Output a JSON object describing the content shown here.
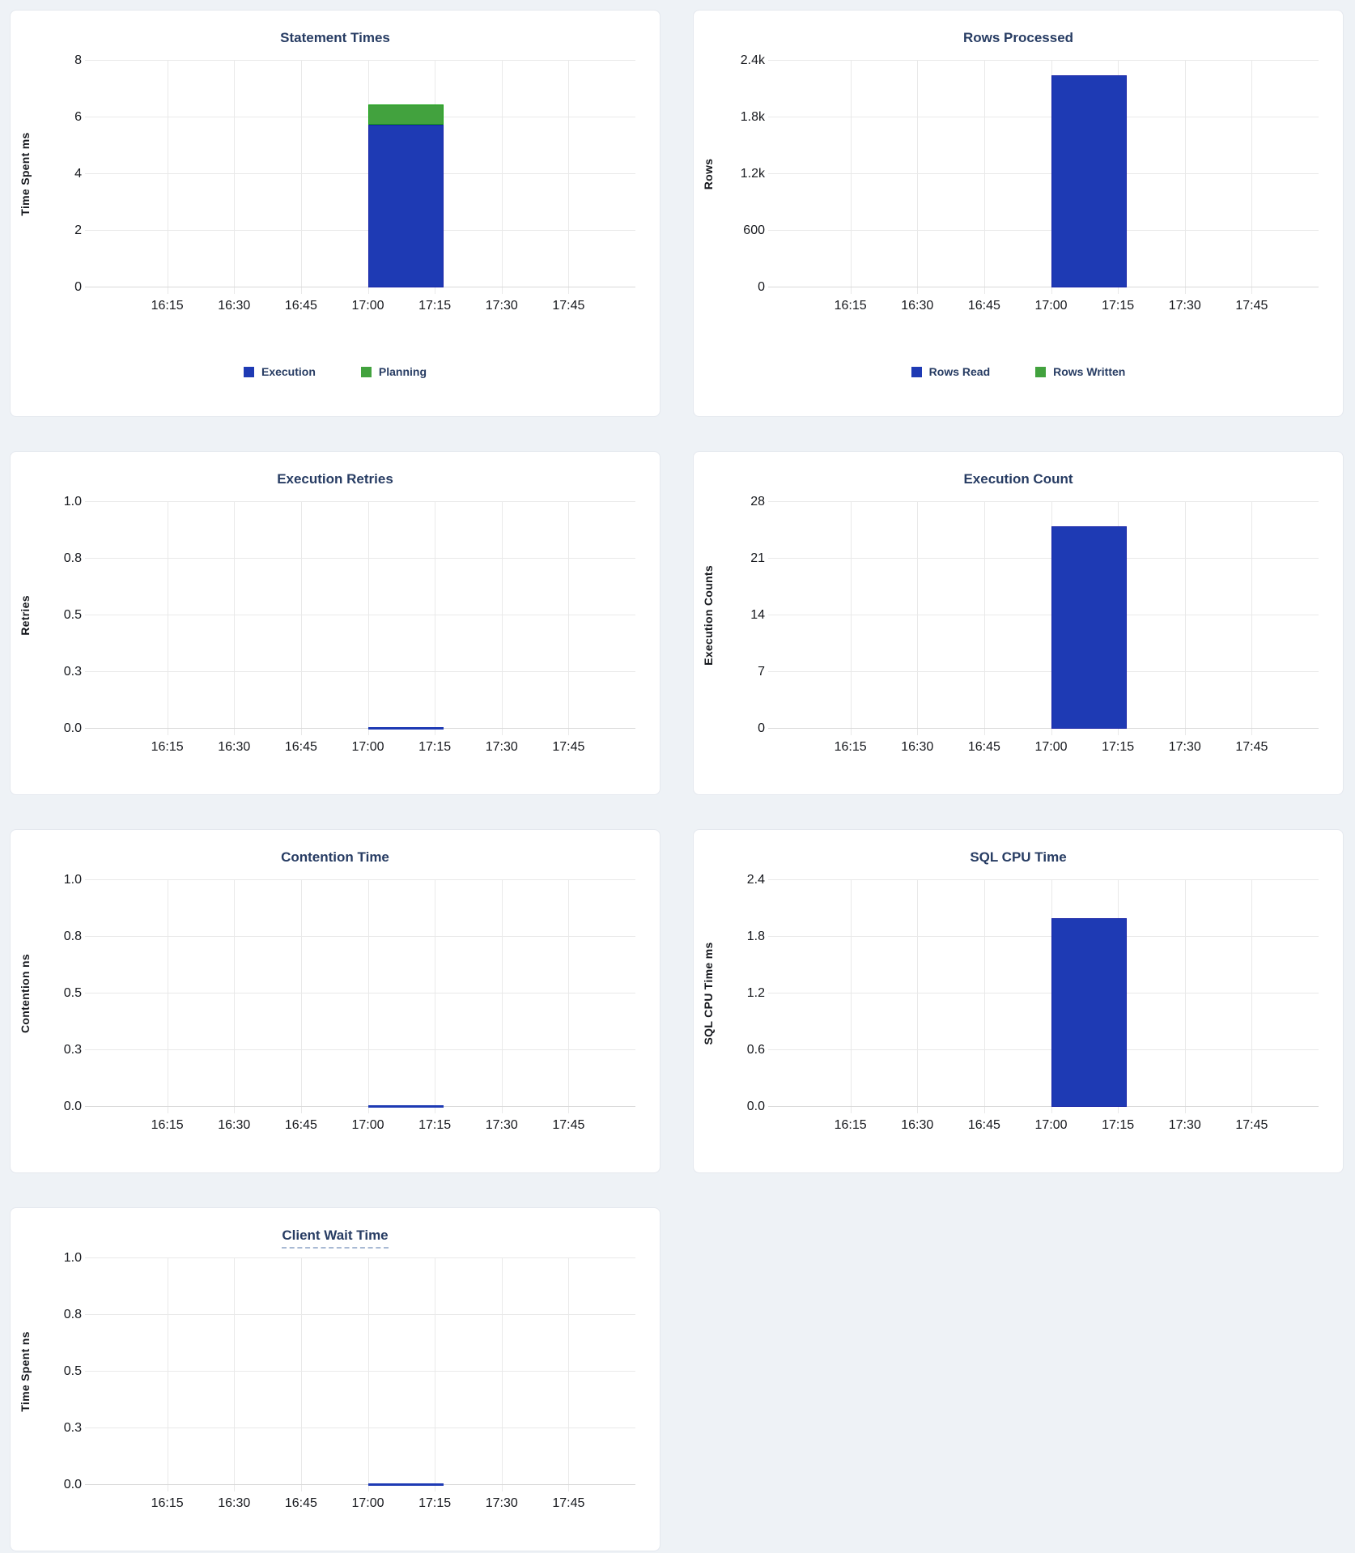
{
  "page": {
    "background": "#eef2f6"
  },
  "theme": {
    "page_bg": "#eef2f6",
    "card_bg": "#ffffff",
    "card_border": "#e4e8ee",
    "title_color": "#273c63",
    "axis_text": "#16181d",
    "grid": "#e9e9e9",
    "axis_line": "#d9d9d9",
    "underline": "#a9bad4",
    "blue": "#1e3ab4",
    "blue_border": "#1723a6",
    "green": "#42a23e",
    "green_border": "#16a012"
  },
  "time_axis": {
    "domain_start": "15:58",
    "domain_end": "18:00",
    "ticks": [
      "16:15",
      "16:30",
      "16:45",
      "17:00",
      "17:15",
      "17:30",
      "17:45"
    ]
  },
  "chart_data": [
    {
      "type": "bar",
      "title": "Statement Times",
      "ylabel": "Time Spent ms",
      "yticks": [
        "0",
        "2",
        "4",
        "6",
        "8"
      ],
      "ylim": [
        0,
        8
      ],
      "xticks": [
        "16:15",
        "16:30",
        "16:45",
        "17:00",
        "17:15",
        "17:30",
        "17:45"
      ],
      "bucket": {
        "start": "17:00",
        "end": "17:15"
      },
      "series": [
        {
          "name": "Execution",
          "value": 5.75,
          "color": "#1e3ab4",
          "border_color": "#1723a6"
        },
        {
          "name": "Planning",
          "value": 0.7,
          "color": "#42a23e",
          "border_color": "#16a012"
        }
      ],
      "legend": [
        {
          "label": "Execution",
          "color": "#1e3ab4"
        },
        {
          "label": "Planning",
          "color": "#42a23e"
        }
      ],
      "title_underlined": false
    },
    {
      "type": "bar",
      "title": "Rows Processed",
      "ylabel": "Rows",
      "yticks": [
        "0",
        "600",
        "1.2k",
        "1.8k",
        "2.4k"
      ],
      "ylim": [
        0,
        2400
      ],
      "xticks": [
        "16:15",
        "16:30",
        "16:45",
        "17:00",
        "17:15",
        "17:30",
        "17:45"
      ],
      "bucket": {
        "start": "17:00",
        "end": "17:15"
      },
      "series": [
        {
          "name": "Rows Read",
          "value": 2250,
          "color": "#1e3ab4",
          "border_color": "#1723a6"
        },
        {
          "name": "Rows Written",
          "value": 0,
          "color": "#42a23e",
          "border_color": "#16a012"
        }
      ],
      "legend": [
        {
          "label": "Rows Read",
          "color": "#1e3ab4"
        },
        {
          "label": "Rows Written",
          "color": "#42a23e"
        }
      ],
      "title_underlined": false
    },
    {
      "type": "bar",
      "title": "Execution Retries",
      "ylabel": "Retries",
      "yticks": [
        "0.0",
        "0.3",
        "0.5",
        "0.8",
        "1.0"
      ],
      "ylim": [
        0,
        1
      ],
      "xticks": [
        "16:15",
        "16:30",
        "16:45",
        "17:00",
        "17:15",
        "17:30",
        "17:45"
      ],
      "bucket": {
        "start": "17:00",
        "end": "17:15"
      },
      "series": [
        {
          "name": "Retries",
          "value": 0,
          "color": "#1e3ab4",
          "border_color": "#1723a6"
        }
      ],
      "legend": null,
      "title_underlined": false
    },
    {
      "type": "bar",
      "title": "Execution Count",
      "ylabel": "Execution Counts",
      "yticks": [
        "0",
        "7",
        "14",
        "21",
        "28"
      ],
      "ylim": [
        0,
        28
      ],
      "xticks": [
        "16:15",
        "16:30",
        "16:45",
        "17:00",
        "17:15",
        "17:30",
        "17:45"
      ],
      "bucket": {
        "start": "17:00",
        "end": "17:15"
      },
      "series": [
        {
          "name": "Execution Count",
          "value": 25,
          "color": "#1e3ab4",
          "border_color": "#1723a6"
        }
      ],
      "legend": null,
      "title_underlined": false
    },
    {
      "type": "bar",
      "title": "Contention Time",
      "ylabel": "Contention ns",
      "yticks": [
        "0.0",
        "0.3",
        "0.5",
        "0.8",
        "1.0"
      ],
      "ylim": [
        0,
        1
      ],
      "xticks": [
        "16:15",
        "16:30",
        "16:45",
        "17:00",
        "17:15",
        "17:30",
        "17:45"
      ],
      "bucket": {
        "start": "17:00",
        "end": "17:15"
      },
      "series": [
        {
          "name": "Contention Time",
          "value": 0,
          "color": "#1e3ab4",
          "border_color": "#1723a6"
        }
      ],
      "legend": null,
      "title_underlined": false
    },
    {
      "type": "bar",
      "title": "SQL CPU Time",
      "ylabel": "SQL CPU Time ms",
      "yticks": [
        "0.0",
        "0.6",
        "1.2",
        "1.8",
        "2.4"
      ],
      "ylim": [
        0,
        2.4
      ],
      "xticks": [
        "16:15",
        "16:30",
        "16:45",
        "17:00",
        "17:15",
        "17:30",
        "17:45"
      ],
      "bucket": {
        "start": "17:00",
        "end": "17:15"
      },
      "series": [
        {
          "name": "SQL CPU Time",
          "value": 2.0,
          "color": "#1e3ab4",
          "border_color": "#1723a6"
        }
      ],
      "legend": null,
      "title_underlined": false
    },
    {
      "type": "bar",
      "title": "Client Wait Time",
      "ylabel": "Time Spent ns",
      "yticks": [
        "0.0",
        "0.3",
        "0.5",
        "0.8",
        "1.0"
      ],
      "ylim": [
        0,
        1
      ],
      "xticks": [
        "16:15",
        "16:30",
        "16:45",
        "17:00",
        "17:15",
        "17:30",
        "17:45"
      ],
      "bucket": {
        "start": "17:00",
        "end": "17:15"
      },
      "series": [
        {
          "name": "Client Wait Time",
          "value": 0,
          "color": "#1e3ab4",
          "border_color": "#1723a6"
        }
      ],
      "legend": null,
      "title_underlined": true
    }
  ]
}
